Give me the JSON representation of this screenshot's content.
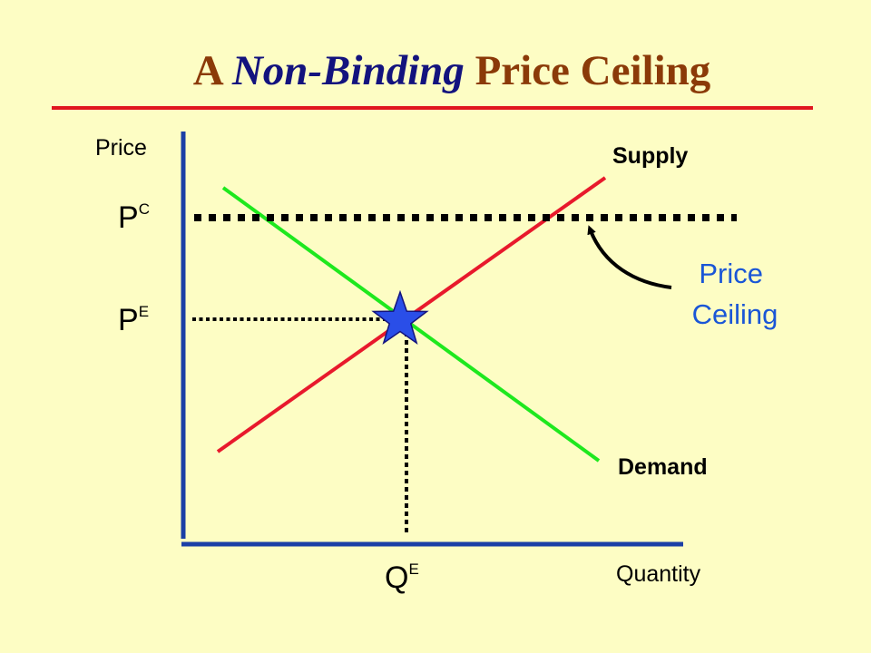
{
  "title": {
    "part1": "A ",
    "part2": "Non-Binding",
    "part3": " Price Ceiling"
  },
  "labels": {
    "y_axis": "Price",
    "x_axis": "Quantity",
    "supply": "Supply",
    "demand": "Demand",
    "price_ceiling_symbol": "P",
    "price_ceiling_sub": "C",
    "equilibrium_price_symbol": "P",
    "equilibrium_price_sub": "E",
    "equilibrium_quantity_symbol": "Q",
    "equilibrium_quantity_sub": "E",
    "annotation_line1": "Price",
    "annotation_line2": "Ceiling"
  },
  "colors": {
    "background": "#fdfdc4",
    "title_main": "#8b3a08",
    "title_emphasis": "#13137e",
    "title_rule": "#e0161e",
    "axes": "#1b3fa6",
    "supply": "#e8192c",
    "demand": "#1ee81e",
    "ceiling_line": "#000000",
    "equilibrium_star": "#2a4ee8",
    "annotation": "#1a56d6"
  },
  "icons": {
    "equilibrium_marker": "star-icon",
    "annotation_pointer": "curved-arrow-icon"
  }
}
